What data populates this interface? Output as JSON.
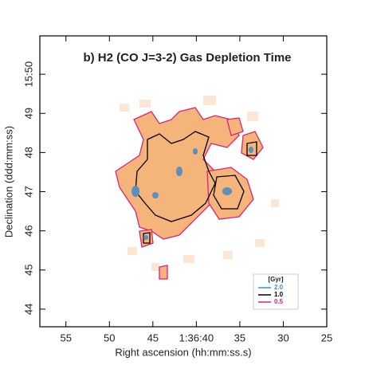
{
  "chart_data": {
    "type": "map",
    "title": "b) H2 (CO J=3-2) Gas Depletion Time",
    "x_label": "Right ascension (hh:mm:ss.s)",
    "y_label": "Declination (ddd:mm:ss)",
    "xlim": [
      58,
      25
    ],
    "xticks": [
      55,
      50,
      45,
      {
        "value": 40,
        "label": "1:36:40"
      },
      35,
      30,
      25
    ],
    "ylim": [
      43.55,
      50.98
    ],
    "yticks": [
      44,
      45,
      46,
      47,
      48,
      49,
      {
        "value": 50,
        "label": "15:50"
      }
    ],
    "legend": {
      "title": "[Gyr]",
      "entries": [
        {
          "label": "2.0",
          "color": "#3a8fd8"
        },
        {
          "label": "1.0",
          "color": "#000000"
        },
        {
          "label": "0.5",
          "color": "#e0207a"
        }
      ]
    }
  }
}
